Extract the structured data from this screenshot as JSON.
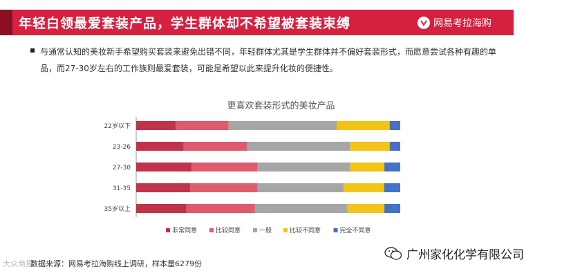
{
  "header": {
    "title": "年轻白领最爱套装产品，学生群体却不希望被套装束缚",
    "brand": "网易考拉海购"
  },
  "description": "与通常认知的美妆新手希望购买套装来避免出错不同，年轻群体尤其是学生群体并不偏好套装形式，而愿意尝试各种有趣的单品，而27-30岁左右的工作族则最爱套装，可能是希望以此来提升化妆的便捷性。",
  "colors": {
    "header_bg": "#d6203f",
    "series": [
      "#c0334b",
      "#e05a6e",
      "#a6a6a6",
      "#f2c417",
      "#4472c4"
    ]
  },
  "chart_data": {
    "type": "bar",
    "orientation": "horizontal",
    "stacked": "percent",
    "title": "更喜欢套装形式的美妆产品",
    "categories": [
      "22岁以下",
      "23-26",
      "27-30",
      "31-35",
      "35岁以上"
    ],
    "series": [
      {
        "name": "非常同意",
        "values": [
          15,
          18,
          21,
          20,
          19
        ]
      },
      {
        "name": "比较同意",
        "values": [
          20,
          24,
          25,
          25,
          26
        ]
      },
      {
        "name": "一般",
        "values": [
          41,
          39,
          35,
          32,
          35
        ]
      },
      {
        "name": "比较不同意",
        "values": [
          20,
          15,
          13,
          15,
          14
        ]
      },
      {
        "name": "完全不同意",
        "values": [
          4,
          4,
          6,
          6,
          6
        ]
      }
    ],
    "xlim": [
      0,
      100
    ],
    "grid": false,
    "legend": "bottom"
  },
  "source": "数据来源：网易考拉海购线上调研，样本量6279份",
  "watermark": {
    "left": "大众商报",
    "right": "广州家化化学有限公司"
  }
}
